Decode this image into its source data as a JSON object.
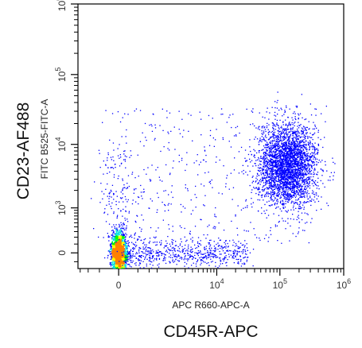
{
  "chart_data": {
    "type": "scatter",
    "plot_kind": "flow cytometry density dot plot (biexponential axes)",
    "xlabel": "APC R660-APC-A",
    "ylabel": "FITC B525-FITC-A",
    "outer_xlabel": "CD45R-APC",
    "outer_ylabel": "CD23-AF488",
    "x_ticks": [
      {
        "base": "0",
        "exp": ""
      },
      {
        "base": "10",
        "exp": "4"
      },
      {
        "base": "10",
        "exp": "5"
      },
      {
        "base": "10",
        "exp": "6"
      }
    ],
    "y_ticks": [
      {
        "base": "0",
        "exp": ""
      },
      {
        "base": "10",
        "exp": "3"
      },
      {
        "base": "10",
        "exp": "4"
      },
      {
        "base": "10",
        "exp": "5"
      },
      {
        "base": "10",
        "exp": "6"
      }
    ],
    "xlim": [
      -1000,
      1000000
    ],
    "ylim": [
      -200,
      1000000
    ],
    "grid": false,
    "colormap": [
      "#0000ff",
      "#00e0e0",
      "#00ff00",
      "#ffff00",
      "#ff8000"
    ],
    "populations": [
      {
        "description": "double-negative cluster",
        "x_center": 0,
        "y_center": 0,
        "relative_density": "very high"
      },
      {
        "description": "CD45R+ CD23+ cluster",
        "x_center": 130000,
        "y_center": 5000,
        "relative_density": "medium"
      }
    ]
  }
}
